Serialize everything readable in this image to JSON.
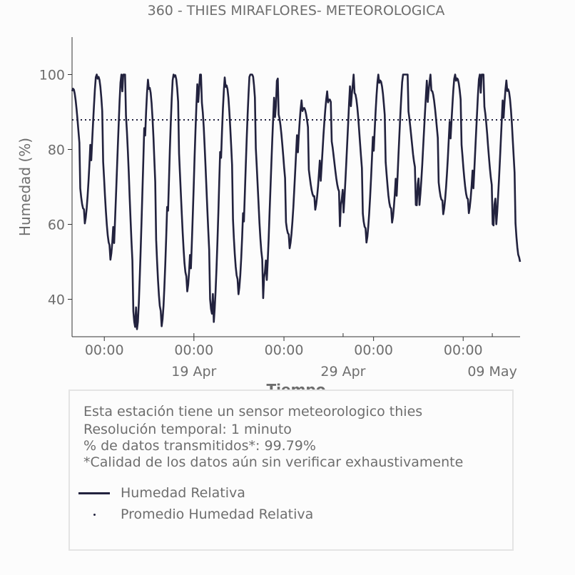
{
  "chart_data": {
    "type": "line",
    "title": "360 - THIES MIRAFLORES- METEOROLOGICA",
    "xlabel": "Tiempo",
    "ylabel": "Humedad (%)",
    "ylim": [
      30,
      110
    ],
    "y_ticks": [
      40,
      60,
      80,
      100
    ],
    "x_tick_labels": [
      "00:00",
      "00:00",
      "00:00",
      "00:00",
      "00:00"
    ],
    "x_date_labels": [
      "19 Apr",
      "29 Apr",
      "09 May"
    ],
    "grid": false,
    "series": [
      {
        "name": "Humedad Relativa",
        "color": "#22223e",
        "style": "solid",
        "x": [
          "2024-04-09T00:00",
          "2024-04-10T00:00",
          "2024-04-11T00:00",
          "2024-04-12T00:00",
          "2024-04-13T00:00",
          "2024-04-14T00:00",
          "2024-04-15T00:00",
          "2024-04-16T00:00",
          "2024-04-17T00:00",
          "2024-04-18T00:00",
          "2024-04-19T00:00",
          "2024-04-20T00:00",
          "2024-04-21T00:00",
          "2024-04-22T00:00",
          "2024-04-23T00:00",
          "2024-04-24T00:00",
          "2024-04-25T00:00",
          "2024-04-26T00:00",
          "2024-04-27T00:00",
          "2024-04-28T00:00",
          "2024-04-29T00:00",
          "2024-04-30T00:00",
          "2024-05-01T00:00",
          "2024-05-02T00:00",
          "2024-05-03T00:00",
          "2024-05-04T00:00",
          "2024-05-05T00:00",
          "2024-05-06T00:00",
          "2024-05-07T00:00",
          "2024-05-08T00:00",
          "2024-05-09T00:00",
          "2024-05-10T00:00",
          "2024-05-11T00:00",
          "2024-05-12T00:00",
          "2024-05-13T00:00",
          "2024-05-14T00:00"
        ],
        "values": [
          100,
          63,
          100,
          50,
          100,
          34,
          100,
          35,
          100,
          41,
          100,
          37,
          100,
          43,
          100,
          44,
          95,
          58,
          93,
          65,
          92,
          63,
          100,
          59,
          100,
          61,
          100,
          68,
          100,
          66,
          100,
          63,
          100,
          62,
          100,
          50
        ]
      }
    ],
    "reference_line": {
      "name": "Promedio Humedad Relativa",
      "value": 87.9,
      "color": "#22223e",
      "style": "dotted"
    }
  },
  "info": {
    "line1": "Esta estación tiene un sensor meteorologico thies",
    "line2": "Resolución temporal: 1 minuto",
    "line3": "% de datos transmitidos*: 99.79%",
    "line4": "*Calidad de los datos aún sin verificar exhaustivamente"
  },
  "legend": {
    "series_label": "Humedad Relativa",
    "mean_label": "Promedio Humedad Relativa"
  }
}
